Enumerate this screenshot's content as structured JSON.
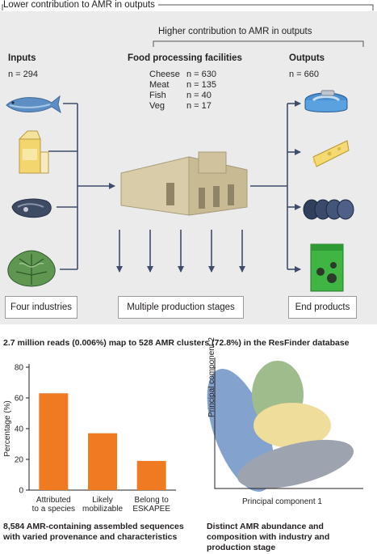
{
  "brackets": {
    "lower": "Lower contribution to AMR in outputs",
    "higher": "Higher contribution to AMR in outputs"
  },
  "headers": {
    "inputs": "Inputs",
    "facilities": "Food processing facilities",
    "outputs": "Outputs"
  },
  "inputs_n": "n = 294",
  "outputs_n": "n = 660",
  "facilities_n": [
    {
      "industry": "Cheese",
      "n": "n = 630"
    },
    {
      "industry": "Meat",
      "n": "n = 135"
    },
    {
      "industry": "Fish",
      "n": "n = 40"
    },
    {
      "industry": "Veg",
      "n": "n = 17"
    }
  ],
  "boxes": {
    "inputs": "Four industries",
    "facilities": "Multiple production stages",
    "outputs": "End products"
  },
  "reads_summary": "2.7 million reads (0.006%) map to 528 AMR clusters (72.8%) in the ResFinder database",
  "chart_data": {
    "type": "bar",
    "categories": [
      "Attributed to a species",
      "Likely mobilizable",
      "Belong to ESKAPEE"
    ],
    "category_lines": [
      [
        "Attributed",
        "to a species"
      ],
      [
        "Likely",
        "mobilizable"
      ],
      [
        "Belong to",
        "ESKAPEE"
      ]
    ],
    "values": [
      63,
      37,
      19
    ],
    "ylabel": "Percentage (%)",
    "yticks": [
      0,
      20,
      40,
      60,
      80
    ],
    "ylim": [
      0,
      80
    ],
    "color": "#f07a22"
  },
  "chart_caption": [
    "8,584 AMR-containing assembled sequences",
    "with varied provenance and characteristics"
  ],
  "pca": {
    "xlabel": "Principal component 1",
    "ylabel": "Principal component 2",
    "colors": {
      "blue": "#6e93c6",
      "green": "#8fb17a",
      "yellow": "#ecd88a",
      "gray": "#8c95a3"
    }
  },
  "pca_caption": [
    "Distinct AMR abundance and",
    "composition with industry and",
    "production stage"
  ]
}
